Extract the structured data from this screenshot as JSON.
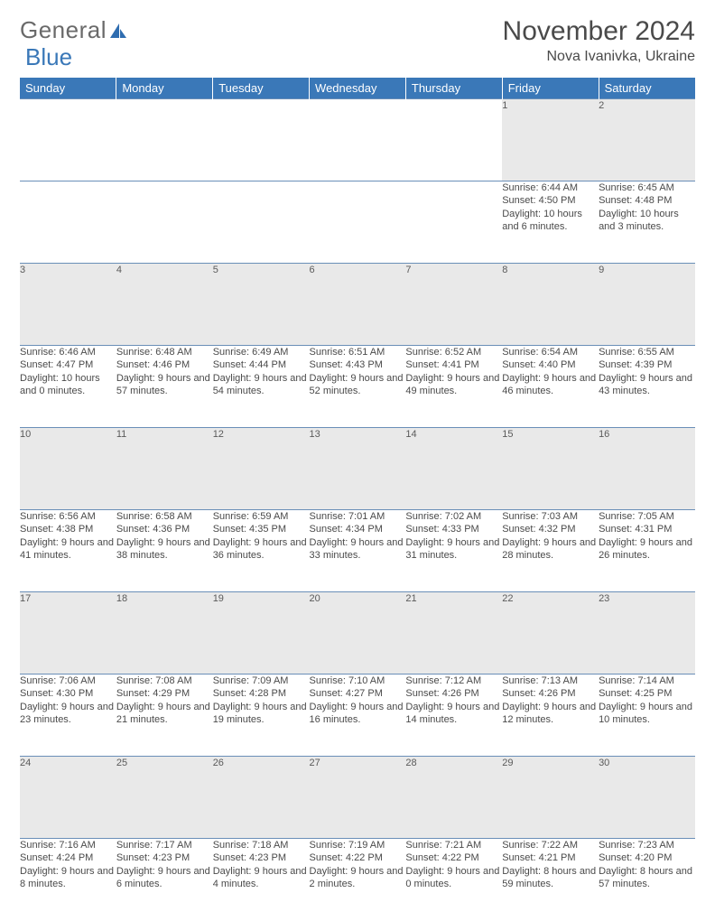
{
  "logo": {
    "word1": "General",
    "word2": "Blue"
  },
  "title": "November 2024",
  "location": "Nova Ivanivka, Ukraine",
  "colors": {
    "header_bg": "#3a78b8",
    "header_text": "#ffffff",
    "daynum_bg": "#e9e9e9",
    "border": "#6a8fb8",
    "text": "#4a4a4a"
  },
  "days_of_week": [
    "Sunday",
    "Monday",
    "Tuesday",
    "Wednesday",
    "Thursday",
    "Friday",
    "Saturday"
  ],
  "weeks": [
    [
      null,
      null,
      null,
      null,
      null,
      {
        "n": "1",
        "sr": "Sunrise: 6:44 AM",
        "ss": "Sunset: 4:50 PM",
        "dl": "Daylight: 10 hours and 6 minutes."
      },
      {
        "n": "2",
        "sr": "Sunrise: 6:45 AM",
        "ss": "Sunset: 4:48 PM",
        "dl": "Daylight: 10 hours and 3 minutes."
      }
    ],
    [
      {
        "n": "3",
        "sr": "Sunrise: 6:46 AM",
        "ss": "Sunset: 4:47 PM",
        "dl": "Daylight: 10 hours and 0 minutes."
      },
      {
        "n": "4",
        "sr": "Sunrise: 6:48 AM",
        "ss": "Sunset: 4:46 PM",
        "dl": "Daylight: 9 hours and 57 minutes."
      },
      {
        "n": "5",
        "sr": "Sunrise: 6:49 AM",
        "ss": "Sunset: 4:44 PM",
        "dl": "Daylight: 9 hours and 54 minutes."
      },
      {
        "n": "6",
        "sr": "Sunrise: 6:51 AM",
        "ss": "Sunset: 4:43 PM",
        "dl": "Daylight: 9 hours and 52 minutes."
      },
      {
        "n": "7",
        "sr": "Sunrise: 6:52 AM",
        "ss": "Sunset: 4:41 PM",
        "dl": "Daylight: 9 hours and 49 minutes."
      },
      {
        "n": "8",
        "sr": "Sunrise: 6:54 AM",
        "ss": "Sunset: 4:40 PM",
        "dl": "Daylight: 9 hours and 46 minutes."
      },
      {
        "n": "9",
        "sr": "Sunrise: 6:55 AM",
        "ss": "Sunset: 4:39 PM",
        "dl": "Daylight: 9 hours and 43 minutes."
      }
    ],
    [
      {
        "n": "10",
        "sr": "Sunrise: 6:56 AM",
        "ss": "Sunset: 4:38 PM",
        "dl": "Daylight: 9 hours and 41 minutes."
      },
      {
        "n": "11",
        "sr": "Sunrise: 6:58 AM",
        "ss": "Sunset: 4:36 PM",
        "dl": "Daylight: 9 hours and 38 minutes."
      },
      {
        "n": "12",
        "sr": "Sunrise: 6:59 AM",
        "ss": "Sunset: 4:35 PM",
        "dl": "Daylight: 9 hours and 36 minutes."
      },
      {
        "n": "13",
        "sr": "Sunrise: 7:01 AM",
        "ss": "Sunset: 4:34 PM",
        "dl": "Daylight: 9 hours and 33 minutes."
      },
      {
        "n": "14",
        "sr": "Sunrise: 7:02 AM",
        "ss": "Sunset: 4:33 PM",
        "dl": "Daylight: 9 hours and 31 minutes."
      },
      {
        "n": "15",
        "sr": "Sunrise: 7:03 AM",
        "ss": "Sunset: 4:32 PM",
        "dl": "Daylight: 9 hours and 28 minutes."
      },
      {
        "n": "16",
        "sr": "Sunrise: 7:05 AM",
        "ss": "Sunset: 4:31 PM",
        "dl": "Daylight: 9 hours and 26 minutes."
      }
    ],
    [
      {
        "n": "17",
        "sr": "Sunrise: 7:06 AM",
        "ss": "Sunset: 4:30 PM",
        "dl": "Daylight: 9 hours and 23 minutes."
      },
      {
        "n": "18",
        "sr": "Sunrise: 7:08 AM",
        "ss": "Sunset: 4:29 PM",
        "dl": "Daylight: 9 hours and 21 minutes."
      },
      {
        "n": "19",
        "sr": "Sunrise: 7:09 AM",
        "ss": "Sunset: 4:28 PM",
        "dl": "Daylight: 9 hours and 19 minutes."
      },
      {
        "n": "20",
        "sr": "Sunrise: 7:10 AM",
        "ss": "Sunset: 4:27 PM",
        "dl": "Daylight: 9 hours and 16 minutes."
      },
      {
        "n": "21",
        "sr": "Sunrise: 7:12 AM",
        "ss": "Sunset: 4:26 PM",
        "dl": "Daylight: 9 hours and 14 minutes."
      },
      {
        "n": "22",
        "sr": "Sunrise: 7:13 AM",
        "ss": "Sunset: 4:26 PM",
        "dl": "Daylight: 9 hours and 12 minutes."
      },
      {
        "n": "23",
        "sr": "Sunrise: 7:14 AM",
        "ss": "Sunset: 4:25 PM",
        "dl": "Daylight: 9 hours and 10 minutes."
      }
    ],
    [
      {
        "n": "24",
        "sr": "Sunrise: 7:16 AM",
        "ss": "Sunset: 4:24 PM",
        "dl": "Daylight: 9 hours and 8 minutes."
      },
      {
        "n": "25",
        "sr": "Sunrise: 7:17 AM",
        "ss": "Sunset: 4:23 PM",
        "dl": "Daylight: 9 hours and 6 minutes."
      },
      {
        "n": "26",
        "sr": "Sunrise: 7:18 AM",
        "ss": "Sunset: 4:23 PM",
        "dl": "Daylight: 9 hours and 4 minutes."
      },
      {
        "n": "27",
        "sr": "Sunrise: 7:19 AM",
        "ss": "Sunset: 4:22 PM",
        "dl": "Daylight: 9 hours and 2 minutes."
      },
      {
        "n": "28",
        "sr": "Sunrise: 7:21 AM",
        "ss": "Sunset: 4:22 PM",
        "dl": "Daylight: 9 hours and 0 minutes."
      },
      {
        "n": "29",
        "sr": "Sunrise: 7:22 AM",
        "ss": "Sunset: 4:21 PM",
        "dl": "Daylight: 8 hours and 59 minutes."
      },
      {
        "n": "30",
        "sr": "Sunrise: 7:23 AM",
        "ss": "Sunset: 4:20 PM",
        "dl": "Daylight: 8 hours and 57 minutes."
      }
    ]
  ]
}
